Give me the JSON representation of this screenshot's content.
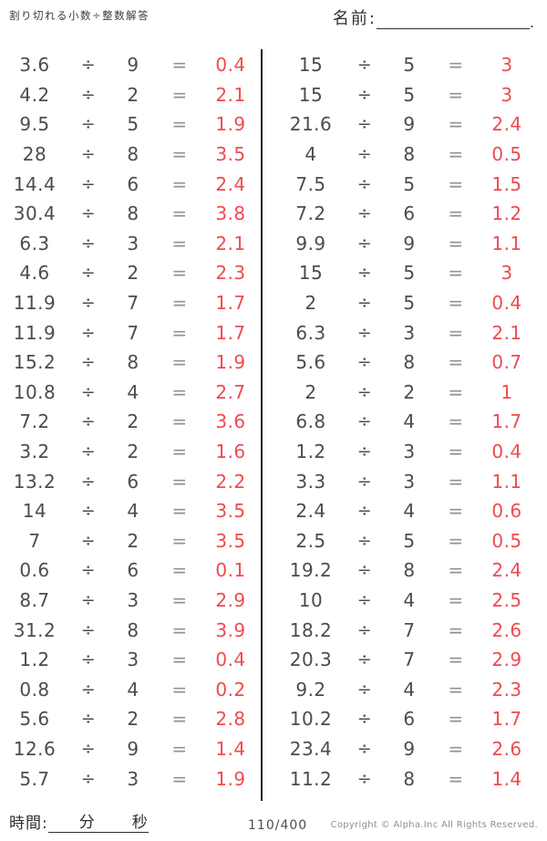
{
  "header": {
    "title": "割り切れる小数÷整数解答",
    "name_label": "名前:",
    "name_suffix": "."
  },
  "problems": {
    "divide_symbol": "÷",
    "equals_symbol": "=",
    "left": [
      {
        "dividend": "3.6",
        "divisor": "9",
        "answer": "0.4"
      },
      {
        "dividend": "4.2",
        "divisor": "2",
        "answer": "2.1"
      },
      {
        "dividend": "9.5",
        "divisor": "5",
        "answer": "1.9"
      },
      {
        "dividend": "28",
        "divisor": "8",
        "answer": "3.5"
      },
      {
        "dividend": "14.4",
        "divisor": "6",
        "answer": "2.4"
      },
      {
        "dividend": "30.4",
        "divisor": "8",
        "answer": "3.8"
      },
      {
        "dividend": "6.3",
        "divisor": "3",
        "answer": "2.1"
      },
      {
        "dividend": "4.6",
        "divisor": "2",
        "answer": "2.3"
      },
      {
        "dividend": "11.9",
        "divisor": "7",
        "answer": "1.7"
      },
      {
        "dividend": "11.9",
        "divisor": "7",
        "answer": "1.7"
      },
      {
        "dividend": "15.2",
        "divisor": "8",
        "answer": "1.9"
      },
      {
        "dividend": "10.8",
        "divisor": "4",
        "answer": "2.7"
      },
      {
        "dividend": "7.2",
        "divisor": "2",
        "answer": "3.6"
      },
      {
        "dividend": "3.2",
        "divisor": "2",
        "answer": "1.6"
      },
      {
        "dividend": "13.2",
        "divisor": "6",
        "answer": "2.2"
      },
      {
        "dividend": "14",
        "divisor": "4",
        "answer": "3.5"
      },
      {
        "dividend": "7",
        "divisor": "2",
        "answer": "3.5"
      },
      {
        "dividend": "0.6",
        "divisor": "6",
        "answer": "0.1"
      },
      {
        "dividend": "8.7",
        "divisor": "3",
        "answer": "2.9"
      },
      {
        "dividend": "31.2",
        "divisor": "8",
        "answer": "3.9"
      },
      {
        "dividend": "1.2",
        "divisor": "3",
        "answer": "0.4"
      },
      {
        "dividend": "0.8",
        "divisor": "4",
        "answer": "0.2"
      },
      {
        "dividend": "5.6",
        "divisor": "2",
        "answer": "2.8"
      },
      {
        "dividend": "12.6",
        "divisor": "9",
        "answer": "1.4"
      },
      {
        "dividend": "5.7",
        "divisor": "3",
        "answer": "1.9"
      }
    ],
    "right": [
      {
        "dividend": "15",
        "divisor": "5",
        "answer": "3"
      },
      {
        "dividend": "15",
        "divisor": "5",
        "answer": "3"
      },
      {
        "dividend": "21.6",
        "divisor": "9",
        "answer": "2.4"
      },
      {
        "dividend": "4",
        "divisor": "8",
        "answer": "0.5"
      },
      {
        "dividend": "7.5",
        "divisor": "5",
        "answer": "1.5"
      },
      {
        "dividend": "7.2",
        "divisor": "6",
        "answer": "1.2"
      },
      {
        "dividend": "9.9",
        "divisor": "9",
        "answer": "1.1"
      },
      {
        "dividend": "15",
        "divisor": "5",
        "answer": "3"
      },
      {
        "dividend": "2",
        "divisor": "5",
        "answer": "0.4"
      },
      {
        "dividend": "6.3",
        "divisor": "3",
        "answer": "2.1"
      },
      {
        "dividend": "5.6",
        "divisor": "8",
        "answer": "0.7"
      },
      {
        "dividend": "2",
        "divisor": "2",
        "answer": "1"
      },
      {
        "dividend": "6.8",
        "divisor": "4",
        "answer": "1.7"
      },
      {
        "dividend": "1.2",
        "divisor": "3",
        "answer": "0.4"
      },
      {
        "dividend": "3.3",
        "divisor": "3",
        "answer": "1.1"
      },
      {
        "dividend": "2.4",
        "divisor": "4",
        "answer": "0.6"
      },
      {
        "dividend": "2.5",
        "divisor": "5",
        "answer": "0.5"
      },
      {
        "dividend": "19.2",
        "divisor": "8",
        "answer": "2.4"
      },
      {
        "dividend": "10",
        "divisor": "4",
        "answer": "2.5"
      },
      {
        "dividend": "18.2",
        "divisor": "7",
        "answer": "2.6"
      },
      {
        "dividend": "20.3",
        "divisor": "7",
        "answer": "2.9"
      },
      {
        "dividend": "9.2",
        "divisor": "4",
        "answer": "2.3"
      },
      {
        "dividend": "10.2",
        "divisor": "6",
        "answer": "1.7"
      },
      {
        "dividend": "23.4",
        "divisor": "9",
        "answer": "2.6"
      },
      {
        "dividend": "11.2",
        "divisor": "8",
        "answer": "1.4"
      }
    ]
  },
  "footer": {
    "time_label": "時間:",
    "minutes_label": "分",
    "seconds_label": "秒",
    "page": "110/400",
    "copyright": "Copyright ©  Alpha.Inc All Rights Reserved."
  },
  "colors": {
    "answer_red": "#f04a4f",
    "ink": "#4c4c4c"
  }
}
